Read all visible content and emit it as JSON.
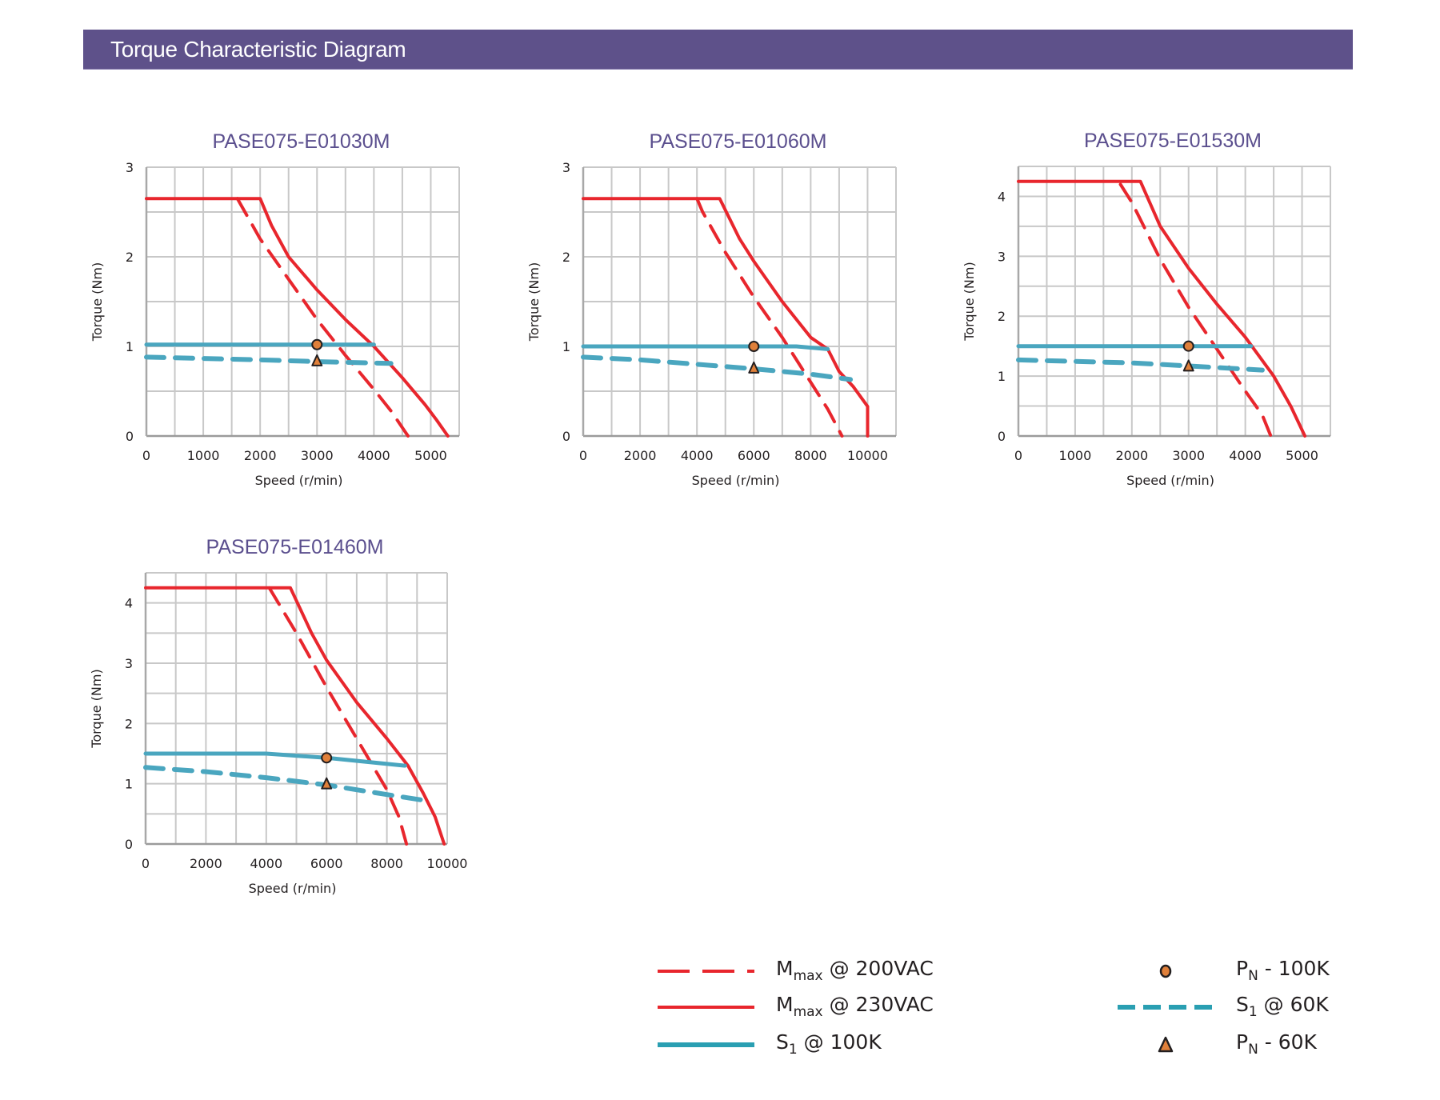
{
  "header": {
    "title": "Torque Characteristic Diagram"
  },
  "colors": {
    "header_bg": "#5e518a",
    "mmax_red": "#e8262d",
    "s1_teal": "#4aa6bf",
    "marker_orange": "#e0803a",
    "marker_stroke": "#231f20",
    "grid": "#c8c8c8"
  },
  "legend": {
    "items": [
      {
        "key": "mmax200",
        "main": "M",
        "sub": "max",
        "rest": " @ 200VAC",
        "style": "red-dashed"
      },
      {
        "key": "mmax230",
        "main": "M",
        "sub": "max",
        "rest": " @ 230VAC",
        "style": "red-solid"
      },
      {
        "key": "s1_100k",
        "main": "S",
        "sub": "1",
        "rest": " @ 100K",
        "style": "teal-solid"
      },
      {
        "key": "pn_100k",
        "main": "P",
        "sub": "N",
        "rest": " - 100K",
        "style": "orange-circle"
      },
      {
        "key": "s1_60k",
        "main": "S",
        "sub": "1",
        "rest": " @ 60K",
        "style": "teal-dashed"
      },
      {
        "key": "pn_60k",
        "main": "P",
        "sub": "N",
        "rest": " - 60K",
        "style": "orange-triangle"
      }
    ]
  },
  "chart_data": [
    {
      "type": "line",
      "title": "PASE075-E01030M",
      "xlabel": "Speed (r/min)",
      "ylabel": "Torque (Nm)",
      "xlim": [
        0,
        5500
      ],
      "ylim": [
        0,
        3
      ],
      "xgrid_step": 500,
      "ygrid_step": 0.5,
      "xticks": [
        0,
        1000,
        2000,
        3000,
        4000,
        5000
      ],
      "yticks": [
        0,
        1,
        2,
        3
      ],
      "grid": true,
      "series": [
        {
          "name": "Mmax @ 230VAC",
          "style": "red-solid",
          "x": [
            0,
            2000,
            2200,
            2500,
            3000,
            3500,
            4000,
            4500,
            4900,
            5100,
            5300
          ],
          "y": [
            2.65,
            2.65,
            2.35,
            2.0,
            1.63,
            1.3,
            1.0,
            0.65,
            0.35,
            0.18,
            0
          ]
        },
        {
          "name": "Mmax @ 200VAC",
          "style": "red-dashed",
          "x": [
            1600,
            2000,
            2500,
            3000,
            3500,
            4000,
            4300,
            4600
          ],
          "y": [
            2.65,
            2.2,
            1.75,
            1.3,
            0.9,
            0.52,
            0.28,
            0
          ]
        },
        {
          "name": "S1 @ 100K",
          "style": "teal-solid",
          "x": [
            0,
            4000
          ],
          "y": [
            1.02,
            1.02
          ]
        },
        {
          "name": "S1 @ 60K",
          "style": "teal-dashed",
          "x": [
            0,
            2000,
            3000,
            4300
          ],
          "y": [
            0.88,
            0.85,
            0.83,
            0.81
          ]
        }
      ],
      "markers": [
        {
          "name": "PN - 100K",
          "shape": "circle",
          "x": 3000,
          "y": 1.02
        },
        {
          "name": "PN - 60K",
          "shape": "triangle",
          "x": 3000,
          "y": 0.84
        }
      ]
    },
    {
      "type": "line",
      "title": "PASE075-E01060M",
      "xlabel": "Speed (r/min)",
      "ylabel": "Torque (Nm)",
      "xlim": [
        0,
        11000
      ],
      "ylim": [
        0,
        3
      ],
      "xgrid_step": 1000,
      "ygrid_step": 0.5,
      "xticks": [
        0,
        2000,
        4000,
        6000,
        8000,
        10000
      ],
      "yticks": [
        0,
        1,
        2,
        3
      ],
      "grid": true,
      "series": [
        {
          "name": "Mmax @ 230VAC",
          "style": "red-solid",
          "x": [
            0,
            4800,
            5500,
            6000,
            7000,
            8000,
            8600,
            9000,
            9500,
            10000,
            10000
          ],
          "y": [
            2.65,
            2.65,
            2.2,
            1.95,
            1.5,
            1.1,
            0.97,
            0.72,
            0.55,
            0.33,
            0
          ]
        },
        {
          "name": "Mmax @ 200VAC",
          "style": "red-dashed",
          "x": [
            4000,
            4200,
            5000,
            6000,
            7000,
            8000,
            8600,
            9100
          ],
          "y": [
            2.65,
            2.5,
            2.05,
            1.55,
            1.1,
            0.6,
            0.3,
            0
          ]
        },
        {
          "name": "S1 @ 100K",
          "style": "teal-solid",
          "x": [
            0,
            7500,
            8600
          ],
          "y": [
            1.0,
            1.0,
            0.97
          ]
        },
        {
          "name": "S1 @ 60K",
          "style": "teal-dashed",
          "x": [
            0,
            2000,
            4000,
            6000,
            8000,
            9400
          ],
          "y": [
            0.88,
            0.85,
            0.8,
            0.75,
            0.69,
            0.63
          ]
        }
      ],
      "markers": [
        {
          "name": "PN - 100K",
          "shape": "circle",
          "x": 6000,
          "y": 1.0
        },
        {
          "name": "PN - 60K",
          "shape": "triangle",
          "x": 6000,
          "y": 0.76
        }
      ]
    },
    {
      "type": "line",
      "title": "PASE075-E01530M",
      "xlabel": "Speed (r/min)",
      "ylabel": "Torque (Nm)",
      "xlim": [
        0,
        5500
      ],
      "ylim": [
        0,
        4.5
      ],
      "xgrid_step": 500,
      "ygrid_step": 0.5,
      "xticks": [
        0,
        1000,
        2000,
        3000,
        4000,
        5000
      ],
      "yticks": [
        0,
        1,
        2,
        3,
        4
      ],
      "grid": true,
      "series": [
        {
          "name": "Mmax @ 230VAC",
          "style": "red-solid",
          "x": [
            0,
            2150,
            2500,
            3000,
            3500,
            4000,
            4500,
            4800,
            5050
          ],
          "y": [
            4.25,
            4.25,
            3.5,
            2.8,
            2.2,
            1.65,
            1.0,
            0.5,
            0
          ]
        },
        {
          "name": "Mmax @ 200VAC",
          "style": "red-dashed",
          "x": [
            1800,
            2000,
            2500,
            3000,
            3500,
            4000,
            4300,
            4450
          ],
          "y": [
            4.2,
            3.9,
            2.95,
            2.15,
            1.45,
            0.75,
            0.35,
            0
          ]
        },
        {
          "name": "S1 @ 100K",
          "style": "teal-solid",
          "x": [
            0,
            4100
          ],
          "y": [
            1.5,
            1.5
          ]
        },
        {
          "name": "S1 @ 60K",
          "style": "teal-dashed",
          "x": [
            0,
            2000,
            3000,
            4300
          ],
          "y": [
            1.27,
            1.22,
            1.17,
            1.1
          ]
        }
      ],
      "markers": [
        {
          "name": "PN - 100K",
          "shape": "circle",
          "x": 3000,
          "y": 1.5
        },
        {
          "name": "PN - 60K",
          "shape": "triangle",
          "x": 3000,
          "y": 1.17
        }
      ]
    },
    {
      "type": "line",
      "title": "PASE075-E01460M",
      "xlabel": "Speed (r/min)",
      "ylabel": "Torque (Nm)",
      "xlim": [
        0,
        10000
      ],
      "ylim": [
        0,
        4.5
      ],
      "xgrid_step": 1000,
      "ygrid_step": 0.5,
      "xticks": [
        0,
        2000,
        4000,
        6000,
        8000,
        10000
      ],
      "yticks": [
        0,
        1,
        2,
        3,
        4
      ],
      "grid": true,
      "series": [
        {
          "name": "Mmax @ 230VAC",
          "style": "red-solid",
          "x": [
            0,
            4800,
            5500,
            6000,
            7000,
            8000,
            8700,
            9200,
            9600,
            9900
          ],
          "y": [
            4.25,
            4.25,
            3.5,
            3.05,
            2.35,
            1.75,
            1.3,
            0.85,
            0.45,
            0
          ]
        },
        {
          "name": "Mmax @ 200VAC",
          "style": "red-dashed",
          "x": [
            4100,
            5000,
            6000,
            7000,
            8000,
            8400,
            8650
          ],
          "y": [
            4.25,
            3.5,
            2.6,
            1.75,
            0.9,
            0.45,
            0
          ]
        },
        {
          "name": "S1 @ 100K",
          "style": "teal-solid",
          "x": [
            0,
            4000,
            6000,
            8600
          ],
          "y": [
            1.5,
            1.5,
            1.43,
            1.3
          ]
        },
        {
          "name": "S1 @ 60K",
          "style": "teal-dashed",
          "x": [
            0,
            2000,
            4000,
            6000,
            8000,
            9300
          ],
          "y": [
            1.27,
            1.2,
            1.1,
            0.98,
            0.82,
            0.72
          ]
        }
      ],
      "markers": [
        {
          "name": "PN - 100K",
          "shape": "circle",
          "x": 6000,
          "y": 1.43
        },
        {
          "name": "PN - 60K",
          "shape": "triangle",
          "x": 6000,
          "y": 1.0
        }
      ]
    }
  ]
}
